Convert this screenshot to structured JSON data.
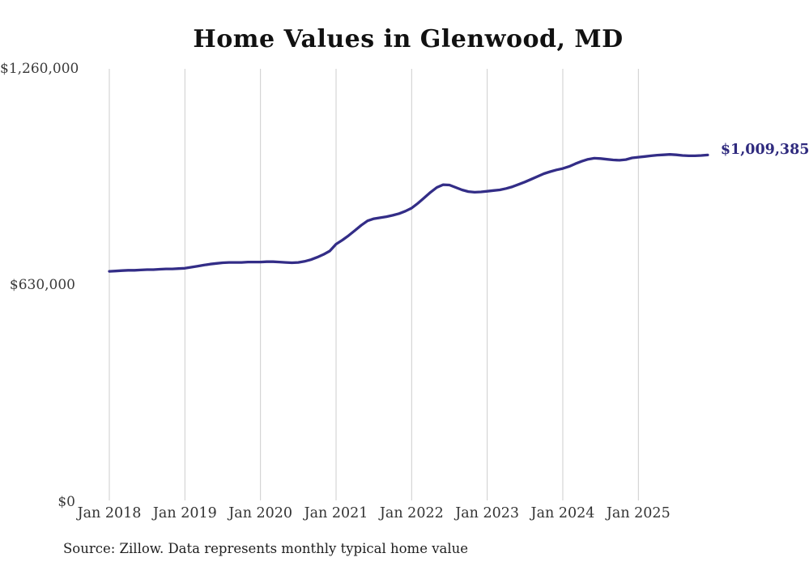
{
  "chart_data": {
    "type": "line",
    "title": "Home Values in Glenwood, MD",
    "series_name": "Monthly typical home value",
    "unit": "USD",
    "interval": "monthly",
    "start_month": "Jan 2018",
    "x_tick_labels": [
      "Jan 2018",
      "Jan 2019",
      "Jan 2020",
      "Jan 2021",
      "Jan 2022",
      "Jan 2023",
      "Jan 2024",
      "Jan 2025"
    ],
    "y_tick_labels": [
      "$0",
      "$630,000",
      "$1,260,000"
    ],
    "y_tick_values": [
      0,
      630000,
      1260000
    ],
    "ylim": [
      0,
      1260000
    ],
    "grid": "vertical-only",
    "legend_position": "none",
    "values": [
      671000,
      672000,
      673000,
      674000,
      674000,
      675000,
      676000,
      676000,
      677000,
      678000,
      678000,
      679000,
      680000,
      683000,
      686000,
      689000,
      692000,
      694000,
      696000,
      697000,
      697000,
      697000,
      698000,
      698000,
      698000,
      699000,
      699000,
      698000,
      697000,
      696000,
      697000,
      700000,
      705000,
      712000,
      720000,
      730000,
      750000,
      762000,
      775000,
      790000,
      805000,
      818000,
      824000,
      827000,
      830000,
      834000,
      839000,
      846000,
      855000,
      869000,
      885000,
      901000,
      915000,
      923000,
      922000,
      915000,
      908000,
      903000,
      901000,
      902000,
      904000,
      906000,
      908000,
      912000,
      917000,
      924000,
      931000,
      939000,
      947000,
      955000,
      961000,
      966000,
      970000,
      976000,
      984000,
      991000,
      997000,
      1000000,
      999000,
      997000,
      995000,
      994000,
      996000,
      1001000,
      1003000,
      1005000,
      1007000,
      1009000,
      1010000,
      1011000,
      1010000,
      1008000,
      1007000,
      1007000,
      1008000,
      1009385
    ],
    "latest_value": 1009385,
    "end_label": "$1,009,385",
    "line_color": "#332d87",
    "end_label_color": "#2f2a7e",
    "grid_color": "#cdcdcd",
    "source_note": "Source: Zillow. Data represents monthly typical home value"
  }
}
